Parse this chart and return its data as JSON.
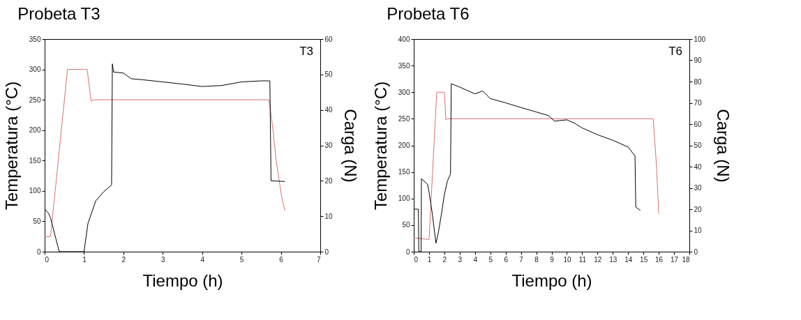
{
  "chart_data": [
    {
      "type": "line",
      "title": "Probeta T3",
      "xlabel": "Tiempo (h)",
      "ylabel": "Temperatura (°C)",
      "y2label": "Carga (N)",
      "annotations": [
        "T3"
      ],
      "xlim": [
        0,
        7
      ],
      "xticks": [
        0,
        1,
        2,
        3,
        4,
        5,
        6,
        7
      ],
      "ylim": [
        0,
        350
      ],
      "yticks": [
        0,
        50,
        100,
        150,
        200,
        250,
        300,
        350
      ],
      "y2lim": [
        0,
        60
      ],
      "y2ticks": [
        0,
        10,
        20,
        30,
        40,
        50,
        60
      ],
      "series": [
        {
          "color": "#d9706e",
          "x": [
            0,
            0.15,
            0.58,
            1.08,
            1.18,
            1.25,
            5.7,
            5.8,
            5.88,
            5.95,
            6.02,
            6.1
          ],
          "values": [
            25,
            25,
            300,
            300,
            248,
            250,
            250,
            200,
            150,
            120,
            90,
            68
          ]
        },
        {
          "color": "#000000",
          "axis": "y2",
          "x": [
            0,
            0.1,
            0.15,
            0.37,
            1,
            1.1,
            1.3,
            1.5,
            1.7,
            1.72,
            1.75,
            2,
            2.2,
            2.5,
            3,
            3.5,
            4,
            4.5,
            5,
            5.5,
            5.72,
            5.75,
            6.1
          ],
          "values": [
            12,
            10.8,
            9.5,
            0,
            0,
            8,
            14.4,
            16.9,
            18.8,
            53,
            50.7,
            50.4,
            48.8,
            48.5,
            47.9,
            47.3,
            46.6,
            46.9,
            47.9,
            48.2,
            48.2,
            20,
            19.8
          ]
        }
      ]
    },
    {
      "type": "line",
      "title": "Probeta T6",
      "xlabel": "Tiempo (h)",
      "ylabel": "Temperatura (°C)",
      "y2label": "Carga (N)",
      "annotations": [
        "T6"
      ],
      "xlim": [
        0,
        18
      ],
      "xticks": [
        0,
        1,
        2,
        3,
        4,
        5,
        6,
        7,
        8,
        9,
        10,
        11,
        12,
        13,
        14,
        15,
        16,
        17,
        18
      ],
      "ylim": [
        0,
        400
      ],
      "yticks": [
        0,
        50,
        100,
        150,
        200,
        250,
        300,
        350,
        400
      ],
      "y2lim": [
        0,
        100
      ],
      "y2ticks": [
        0,
        10,
        20,
        30,
        40,
        50,
        60,
        70,
        80,
        90,
        100
      ],
      "series": [
        {
          "color": "#d9706e",
          "x": [
            0,
            1,
            1.5,
            2,
            2.1,
            2.2,
            15.64,
            15.85,
            16
          ],
          "values": [
            26,
            23,
            300,
            300,
            248,
            250,
            250,
            163,
            71
          ]
        },
        {
          "color": "#000000",
          "axis": "y2",
          "x": [
            0,
            0.3,
            0.33,
            0.48,
            0.5,
            0.9,
            1,
            1.2,
            1.45,
            1.6,
            1.8,
            2,
            2.2,
            2.4,
            2.45,
            3,
            3.5,
            4,
            4.5,
            5,
            6,
            7,
            8,
            8.8,
            9.2,
            10,
            10.5,
            11,
            12,
            13,
            14,
            14.45,
            14.5,
            14.8
          ],
          "values": [
            20,
            20,
            0,
            0,
            34.3,
            31.7,
            28,
            18.4,
            4,
            8.8,
            17.3,
            26.9,
            33.3,
            36.5,
            79,
            77.4,
            75.8,
            74.2,
            75.6,
            72,
            70,
            67.8,
            65.7,
            64,
            61.4,
            62,
            60.4,
            58.2,
            55,
            52.4,
            49.2,
            45,
            21,
            19.4
          ]
        }
      ]
    }
  ]
}
